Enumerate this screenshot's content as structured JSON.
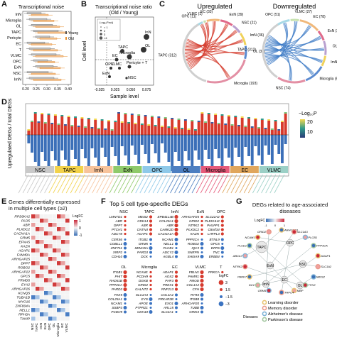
{
  "panelA": {
    "label": "A",
    "title": "Transcriptional noise",
    "cells": [
      "InN",
      "Microglia",
      "OL",
      "TAPC",
      "Pericyte",
      "EC",
      "T",
      "VLMC",
      "OPC",
      "ExN",
      "NSC",
      "ImN"
    ],
    "legend": [
      "Young",
      "Old"
    ],
    "x_ticks": [
      "0.20",
      "0.25",
      "0.30",
      "0.35",
      "0.40"
    ]
  },
  "panelB": {
    "label": "B",
    "title": "Transcriptional noise ratio",
    "subtitle": "(Old / Young)",
    "ylabel": "Cell level",
    "xlabel": "Sample level",
    "x_ticks": [
      "-0.025",
      "0.025",
      "0.050",
      "0.075"
    ],
    "legend_title": "-Log₁₀P.adj",
    "legend_items": [
      "< 1",
      "2",
      "3",
      ">4"
    ],
    "points": [
      "InN",
      "OL",
      "Microglia",
      "TAPC",
      "EC",
      "Pericyte + T",
      "VLMC",
      "OPC",
      "ExN",
      "NSC"
    ]
  },
  "panelC": {
    "label": "C",
    "up_title": "Upregulated",
    "down_title": "Downregulated",
    "up_labels": [
      "OPC (11)",
      "VLMC (1)",
      "EC (33)",
      "ExN (39)",
      "NSC (21)",
      "ImN (36)",
      "OL (36)",
      "Microglia (193)",
      "TAPC (312)"
    ],
    "down_labels": [
      "OPC (51)",
      "VLMC (27)",
      "EC (78)",
      "ExN (33)",
      "OL (49)",
      "ImN (30)",
      "Microglia (62)",
      "NSC (74)",
      "TAPC (312)"
    ]
  },
  "panelD": {
    "label": "D",
    "ylabel": "Upregulated DEGs / total DEGs",
    "legend_title": "−Log₁₀P",
    "legend_ticks": [
      "20",
      "10"
    ],
    "groups": [
      "NSC",
      "TAPC",
      "ImN",
      "ExN",
      "OPC",
      "OL",
      "Microglia",
      "EC",
      "VLMC"
    ],
    "group_colors": [
      "#c9c9c9",
      "#f2d24a",
      "#f7c39b",
      "#8fca6a",
      "#8ec9e9",
      "#4d7fc1",
      "#e65a7a",
      "#e0a65c",
      "#9bd0c6"
    ]
  },
  "panelE": {
    "label": "E",
    "title": "Genes differentially expressed in multiple cell types (≥2)",
    "genes": [
      "RPS6KA2",
      "PLD5",
      "ABR",
      "PLXDC2",
      "CACNA1A",
      "GRM5",
      "EFNA5",
      "KAZN",
      "AGAP1",
      "FAM49A",
      "ARHGAP25",
      "DPP7",
      "ROBO2",
      "ARHGAP22",
      "GPC5",
      "FRMD5",
      "EYA2",
      "ARHGAP26",
      "KCNQ5",
      "TUBA1B",
      "MYO16",
      "ZNF804A",
      "NELL1",
      "RPH3A",
      "TXNIP"
    ],
    "columns": [
      "NSC",
      "TAPC",
      "ImN",
      "ExN",
      "OPC",
      "OL",
      "Microglia",
      "EC",
      "VLMC"
    ],
    "legend_title": "LogFC",
    "legend_ticks": [
      "1",
      "0",
      "-1"
    ]
  },
  "panelF": {
    "label": "F",
    "title": "Top 5 cell type-specific DEGs",
    "blocks": [
      {
        "name": "NSC",
        "up": [
          "LMNTD1",
          "ABR",
          "DPP7",
          "PTCH1",
          "ADCY8"
        ],
        "down": [
          "CERS6",
          "COBLL1",
          "ZNF711",
          "XIRP2",
          "CDH10"
        ]
      },
      {
        "name": "TAPC",
        "up": [
          "MEIS2",
          "CDK14",
          "ABR",
          "CNTN4",
          "AGAP1"
        ],
        "down": [
          "ITGB1",
          "GRM5",
          "SEMA5A",
          "PARD3",
          "DCK"
        ]
      },
      {
        "name": "ImN",
        "up": [
          "EPB41L4B",
          "COL25A1",
          "ABR",
          "CAMK2D",
          "CACNA1A"
        ],
        "down": [
          "NCAM1",
          "NELL1",
          "PLCB1",
          "ADCY2",
          "AGBL4"
        ]
      },
      {
        "name": "ExN",
        "up": [
          "ARHGAP25",
          "GRID2",
          "NTRK2",
          "PLXDC2",
          "KAZN"
        ],
        "down": [
          "PPP3CA",
          "ROBO2",
          "IQCJ",
          "SNRPN",
          "SHISA9"
        ]
      },
      {
        "name": "OPC",
        "up": [
          "SLC22A2",
          "PLEKHH2",
          "PHLPP1",
          "C8orf34",
          "LHFPL3"
        ],
        "down": [
          "BTNL9",
          "GPC5",
          "DPP6",
          "TNC",
          "ERBB4"
        ]
      },
      {
        "name": "OL",
        "up": [
          "ITGB1",
          "PHIT",
          "RAD51B",
          "PPP3CA",
          "PARD3"
        ],
        "down": [
          "PAK5",
          "COL25A1",
          "NCAM1",
          "SSBP3",
          "PCDH9"
        ]
      },
      {
        "name": "Microglia",
        "up": [
          "NCAM1",
          "PCDH9",
          "DGKB",
          "GRID2",
          "GALNT2"
        ],
        "down": [
          "SLC1A3",
          "EYS",
          "APOE",
          "PTPRZ1",
          "CDH10"
        ]
      },
      {
        "name": "EC",
        "up": [
          "ADAP1",
          "AOX2",
          "PHF3",
          "PREX1",
          "RNF213"
        ],
        "down": [
          "COL4A2",
          "PRKAR2B",
          "EXO1",
          "ARL15",
          "SLC2A1"
        ]
      },
      {
        "name": "VLMC",
        "up": [
          "FBLN1",
          "PAMR1",
          "FMOD",
          "COL1A2",
          "CFH"
        ],
        "down": [
          "RYR3",
          "ITGB8",
          "ARHGAP20",
          "TUBB",
          "GRIK4"
        ]
      },
      {
        "name": "T",
        "up": [
          "PRKCA"
        ],
        "down": []
      }
    ],
    "legend_title": "logFC",
    "legend_ticks": [
      "3",
      "1.5",
      "−1.5",
      "−3"
    ]
  },
  "panelG": {
    "label": "G",
    "title": "DEGs related to age-associated diseases",
    "legend_title": "LogFC",
    "legend_ticks": [
      "-1",
      "0",
      "1"
    ],
    "cell_nodes": [
      "TAPC",
      "ExN",
      "OPC",
      "ImN",
      "EC",
      "NSC",
      "OL"
    ],
    "gene_nodes": [
      "ARHGEF3",
      "SLC1A3",
      "PLCB1",
      "PPP3CA",
      "AGAP1",
      "SLC1A2",
      "MEIS2",
      "TPH2",
      "MBP",
      "TRPC4",
      "GRM5",
      "DCC",
      "PARK7",
      "NTRK2",
      "ABCA7",
      "PLCE1",
      "NCAM1",
      "GRID2"
    ],
    "diseases_label": "Diseases",
    "diseases": [
      "Learning disorder",
      "Memory disorder",
      "Alzheimer's disease",
      "Parkinson's disease"
    ],
    "disease_colors": [
      "#e8c472",
      "#e99a8a",
      "#7fb3d6",
      "#a3c7a0"
    ]
  }
}
